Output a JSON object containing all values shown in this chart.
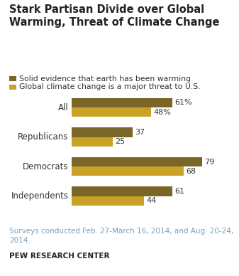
{
  "title": "Stark Partisan Divide over Global\nWarming, Threat of Climate Change",
  "categories": [
    "All",
    "Republicans",
    "Democrats",
    "Independents"
  ],
  "series1_label": "Solid evidence that earth has been warming",
  "series2_label": "Global climate change is a major threat to U.S.",
  "series1_values": [
    61,
    37,
    79,
    61
  ],
  "series2_values": [
    48,
    25,
    68,
    44
  ],
  "series1_color": "#7a6728",
  "series2_color": "#c9a227",
  "label1_suffix": [
    "%",
    "",
    "",
    ""
  ],
  "label2_suffix": [
    "%",
    "",
    "",
    ""
  ],
  "xlim": [
    0,
    90
  ],
  "footnote": "Surveys conducted Feb. 27-March 16, 2014, and Aug. 20-24,\n2014.",
  "source": "PEW RESEARCH CENTER",
  "footnote_color": "#7a9ebc",
  "source_color": "#222222",
  "bg_color": "#ffffff",
  "title_color": "#222222",
  "bar_height": 0.32,
  "value_fontsize": 8,
  "cat_fontsize": 8.5,
  "legend_fontsize": 7.8,
  "title_fontsize": 10.5,
  "footnote_fontsize": 7.5,
  "source_fontsize": 7.5
}
